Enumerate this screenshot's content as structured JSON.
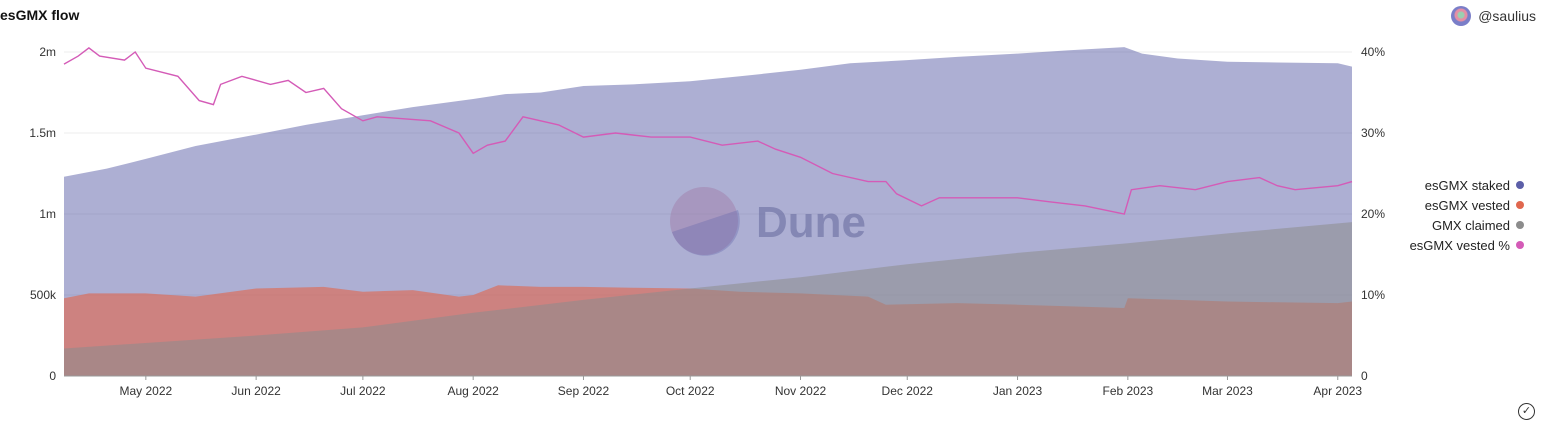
{
  "header": {
    "title": "esGMX flow",
    "user": "@saulius"
  },
  "watermark": "Dune",
  "colors": {
    "staked": "#5c5fa8",
    "vested": "#e0674e",
    "claimed": "#8c8c8c",
    "vested_pct": "#d45bb7"
  },
  "chart_data": {
    "type": "area",
    "title": "esGMX flow",
    "x_range": [
      "2022-04-08",
      "2023-04-05"
    ],
    "y_left": {
      "range": [
        0,
        2000000
      ],
      "ticks": [
        0,
        500000,
        1000000,
        1500000,
        2000000
      ],
      "tick_labels": [
        "0",
        "500k",
        "1m",
        "1.5m",
        "2m"
      ]
    },
    "y_right": {
      "range": [
        0,
        0.4
      ],
      "ticks": [
        0,
        0.1,
        0.2,
        0.3,
        0.4
      ],
      "tick_labels": [
        "0",
        "10%",
        "20%",
        "30%",
        "40%"
      ]
    },
    "x_ticks": [
      {
        "date": "2022-05-01",
        "label": "May 2022"
      },
      {
        "date": "2022-06-01",
        "label": "Jun 2022"
      },
      {
        "date": "2022-07-01",
        "label": "Jul 2022"
      },
      {
        "date": "2022-08-01",
        "label": "Aug 2022"
      },
      {
        "date": "2022-09-01",
        "label": "Sep 2022"
      },
      {
        "date": "2022-10-01",
        "label": "Oct 2022"
      },
      {
        "date": "2022-11-01",
        "label": "Nov 2022"
      },
      {
        "date": "2022-12-01",
        "label": "Dec 2022"
      },
      {
        "date": "2023-01-01",
        "label": "Jan 2023"
      },
      {
        "date": "2023-02-01",
        "label": "Feb 2023"
      },
      {
        "date": "2023-03-01",
        "label": "Mar 2023"
      },
      {
        "date": "2023-04-01",
        "label": "Apr 2023"
      }
    ],
    "legend": {
      "placement": "right"
    },
    "series": [
      {
        "name": "esGMX staked",
        "axis": "left",
        "style": "area",
        "points": [
          [
            "2022-04-08",
            1230000
          ],
          [
            "2022-04-20",
            1280000
          ],
          [
            "2022-05-01",
            1340000
          ],
          [
            "2022-05-15",
            1420000
          ],
          [
            "2022-06-01",
            1490000
          ],
          [
            "2022-06-15",
            1550000
          ],
          [
            "2022-07-01",
            1610000
          ],
          [
            "2022-07-15",
            1660000
          ],
          [
            "2022-08-01",
            1710000
          ],
          [
            "2022-08-10",
            1740000
          ],
          [
            "2022-08-20",
            1750000
          ],
          [
            "2022-09-01",
            1790000
          ],
          [
            "2022-09-15",
            1800000
          ],
          [
            "2022-10-01",
            1820000
          ],
          [
            "2022-10-15",
            1850000
          ],
          [
            "2022-11-01",
            1890000
          ],
          [
            "2022-11-15",
            1930000
          ],
          [
            "2022-12-01",
            1950000
          ],
          [
            "2022-12-15",
            1970000
          ],
          [
            "2023-01-01",
            1990000
          ],
          [
            "2023-01-15",
            2010000
          ],
          [
            "2023-01-31",
            2030000
          ],
          [
            "2023-02-05",
            1990000
          ],
          [
            "2023-02-15",
            1960000
          ],
          [
            "2023-03-01",
            1940000
          ],
          [
            "2023-03-15",
            1935000
          ],
          [
            "2023-04-01",
            1930000
          ],
          [
            "2023-04-05",
            1910000
          ]
        ]
      },
      {
        "name": "esGMX vested",
        "axis": "left",
        "style": "area",
        "points": [
          [
            "2022-04-08",
            480000
          ],
          [
            "2022-04-15",
            510000
          ],
          [
            "2022-05-01",
            510000
          ],
          [
            "2022-05-15",
            490000
          ],
          [
            "2022-06-01",
            540000
          ],
          [
            "2022-06-20",
            550000
          ],
          [
            "2022-07-01",
            520000
          ],
          [
            "2022-07-15",
            530000
          ],
          [
            "2022-07-28",
            490000
          ],
          [
            "2022-08-01",
            500000
          ],
          [
            "2022-08-08",
            560000
          ],
          [
            "2022-08-20",
            550000
          ],
          [
            "2022-09-01",
            550000
          ],
          [
            "2022-09-15",
            545000
          ],
          [
            "2022-10-01",
            540000
          ],
          [
            "2022-10-15",
            520000
          ],
          [
            "2022-11-01",
            510000
          ],
          [
            "2022-11-20",
            490000
          ],
          [
            "2022-11-25",
            440000
          ],
          [
            "2022-12-15",
            450000
          ],
          [
            "2023-01-01",
            440000
          ],
          [
            "2023-01-15",
            430000
          ],
          [
            "2023-01-31",
            420000
          ],
          [
            "2023-02-01",
            480000
          ],
          [
            "2023-02-15",
            470000
          ],
          [
            "2023-03-01",
            460000
          ],
          [
            "2023-03-15",
            455000
          ],
          [
            "2023-04-01",
            450000
          ],
          [
            "2023-04-05",
            460000
          ]
        ]
      },
      {
        "name": "GMX claimed",
        "axis": "left",
        "style": "area",
        "points": [
          [
            "2022-04-08",
            170000
          ],
          [
            "2022-06-01",
            250000
          ],
          [
            "2022-07-01",
            300000
          ],
          [
            "2022-08-01",
            390000
          ],
          [
            "2022-09-01",
            470000
          ],
          [
            "2022-10-01",
            540000
          ],
          [
            "2022-11-01",
            610000
          ],
          [
            "2022-12-01",
            690000
          ],
          [
            "2023-01-01",
            760000
          ],
          [
            "2023-02-01",
            820000
          ],
          [
            "2023-03-01",
            880000
          ],
          [
            "2023-04-05",
            950000
          ]
        ]
      },
      {
        "name": "esGMX vested %",
        "axis": "right",
        "style": "line",
        "points": [
          [
            "2022-04-08",
            0.385
          ],
          [
            "2022-04-12",
            0.395
          ],
          [
            "2022-04-15",
            0.405
          ],
          [
            "2022-04-18",
            0.395
          ],
          [
            "2022-04-25",
            0.39
          ],
          [
            "2022-04-28",
            0.4
          ],
          [
            "2022-05-01",
            0.38
          ],
          [
            "2022-05-10",
            0.37
          ],
          [
            "2022-05-16",
            0.34
          ],
          [
            "2022-05-20",
            0.335
          ],
          [
            "2022-05-22",
            0.36
          ],
          [
            "2022-05-28",
            0.37
          ],
          [
            "2022-06-05",
            0.36
          ],
          [
            "2022-06-10",
            0.365
          ],
          [
            "2022-06-15",
            0.35
          ],
          [
            "2022-06-20",
            0.355
          ],
          [
            "2022-06-25",
            0.33
          ],
          [
            "2022-07-01",
            0.315
          ],
          [
            "2022-07-05",
            0.32
          ],
          [
            "2022-07-20",
            0.315
          ],
          [
            "2022-07-28",
            0.3
          ],
          [
            "2022-08-01",
            0.275
          ],
          [
            "2022-08-05",
            0.285
          ],
          [
            "2022-08-10",
            0.29
          ],
          [
            "2022-08-15",
            0.32
          ],
          [
            "2022-08-25",
            0.31
          ],
          [
            "2022-09-01",
            0.295
          ],
          [
            "2022-09-10",
            0.3
          ],
          [
            "2022-09-20",
            0.295
          ],
          [
            "2022-10-01",
            0.295
          ],
          [
            "2022-10-10",
            0.285
          ],
          [
            "2022-10-20",
            0.29
          ],
          [
            "2022-10-25",
            0.28
          ],
          [
            "2022-11-01",
            0.27
          ],
          [
            "2022-11-10",
            0.25
          ],
          [
            "2022-11-20",
            0.24
          ],
          [
            "2022-11-25",
            0.24
          ],
          [
            "2022-11-28",
            0.225
          ],
          [
            "2022-12-05",
            0.21
          ],
          [
            "2022-12-10",
            0.22
          ],
          [
            "2022-12-20",
            0.22
          ],
          [
            "2023-01-01",
            0.22
          ],
          [
            "2023-01-10",
            0.215
          ],
          [
            "2023-01-20",
            0.21
          ],
          [
            "2023-01-31",
            0.2
          ],
          [
            "2023-02-02",
            0.23
          ],
          [
            "2023-02-10",
            0.235
          ],
          [
            "2023-02-20",
            0.23
          ],
          [
            "2023-03-01",
            0.24
          ],
          [
            "2023-03-10",
            0.245
          ],
          [
            "2023-03-15",
            0.235
          ],
          [
            "2023-03-20",
            0.23
          ],
          [
            "2023-04-01",
            0.235
          ],
          [
            "2023-04-05",
            0.24
          ]
        ]
      }
    ]
  }
}
